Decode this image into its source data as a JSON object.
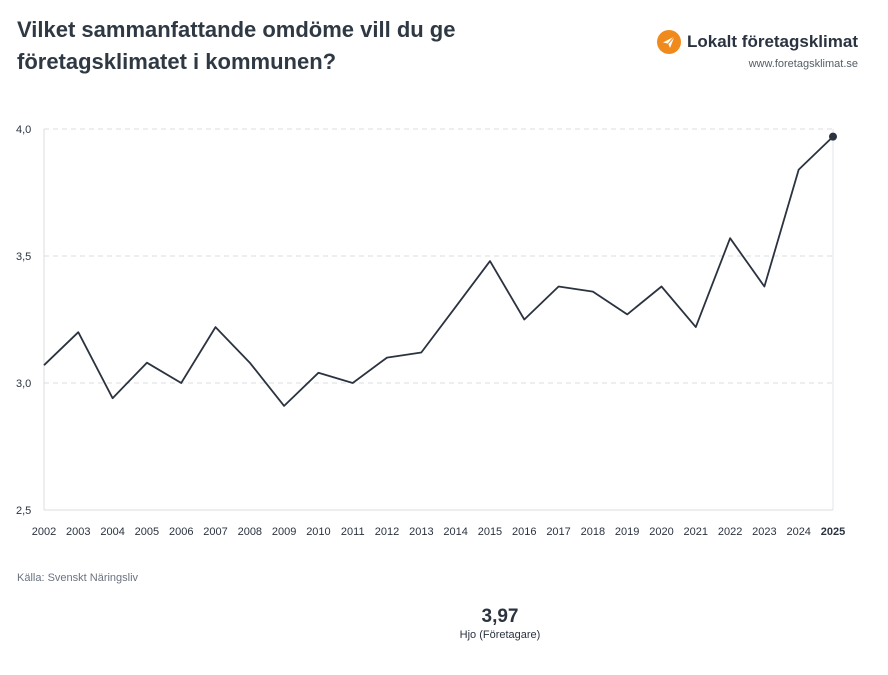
{
  "title": "Vilket sammanfattande omdöme vill du ge företagsklimatet i kommunen?",
  "brand": {
    "name": "Lokalt företagsklimat",
    "url": "www.foretagsklimat.se",
    "accent": "#f08a1c",
    "logo_icon": "paper-plane-icon"
  },
  "source": "Källa: Svenskt Näringsliv",
  "kpi": {
    "value": "3,97",
    "label": "Hjo (Företagare)"
  },
  "chart_data": {
    "type": "line",
    "title": "Vilket sammanfattande omdöme vill du ge företagsklimatet i kommunen?",
    "xlabel": "",
    "ylabel": "",
    "x": [
      "2002",
      "2003",
      "2004",
      "2005",
      "2006",
      "2007",
      "2008",
      "2009",
      "2010",
      "2011",
      "2012",
      "2013",
      "2014",
      "2015",
      "2016",
      "2017",
      "2018",
      "2019",
      "2020",
      "2021",
      "2022",
      "2023",
      "2024",
      "2025"
    ],
    "highlight_x": "2025",
    "series": [
      {
        "name": "Hjo (Företagare)",
        "values": [
          3.07,
          3.2,
          2.94,
          3.08,
          3.0,
          3.22,
          3.08,
          2.91,
          3.04,
          3.0,
          3.1,
          3.12,
          3.3,
          3.48,
          3.25,
          3.38,
          3.36,
          3.27,
          3.38,
          3.22,
          3.57,
          3.38,
          3.84,
          3.97
        ]
      }
    ],
    "ylim": [
      2.5,
      4.0
    ],
    "yticks": [
      2.5,
      3.0,
      3.5,
      4.0
    ],
    "ytick_labels": [
      "2,5",
      "3,0",
      "3,5",
      "4,0"
    ],
    "line_color": "#2b3340",
    "grid": true
  }
}
